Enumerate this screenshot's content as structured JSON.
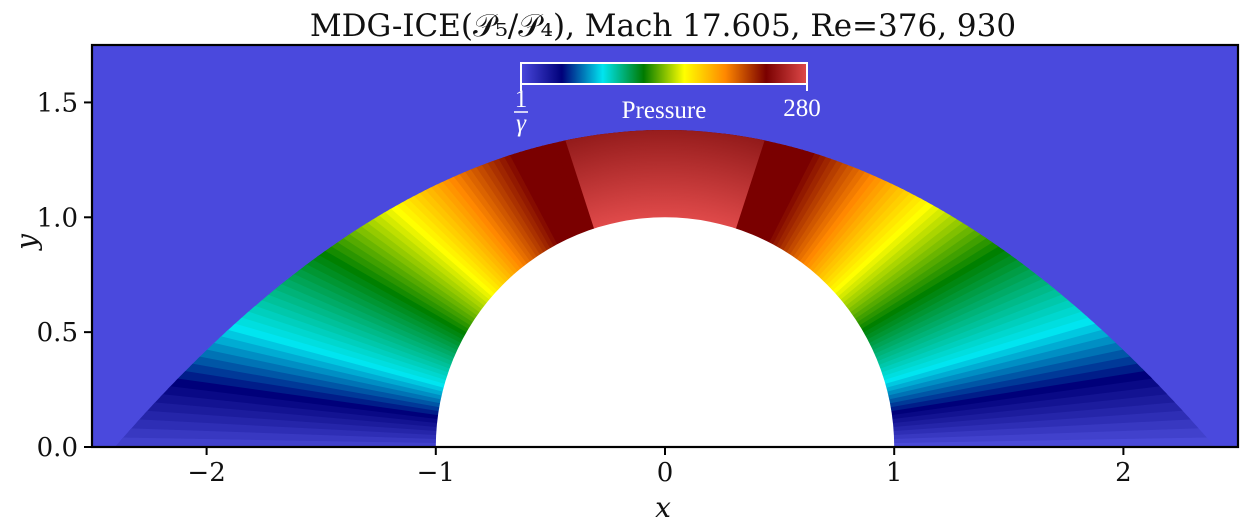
{
  "chart_data": {
    "type": "heatmap",
    "title": "MDG-ICE(𝒫₅/𝒫₄), Mach 17.605, Re=376, 930",
    "xlabel": "x",
    "ylabel": "y",
    "xlim": [
      -2.5,
      2.5
    ],
    "ylim": [
      0.0,
      1.75
    ],
    "x_ticks": [
      -2,
      -1,
      0,
      1,
      2
    ],
    "x_tick_labels": [
      "−2",
      "−1",
      "0",
      "1",
      "2"
    ],
    "y_ticks": [
      0.0,
      0.5,
      1.0,
      1.5
    ],
    "y_tick_labels": [
      "0.0",
      "0.5",
      "1.0",
      "1.5"
    ],
    "grid": false,
    "field": "Pressure",
    "body": {
      "shape": "half-cylinder",
      "center": [
        0,
        0
      ],
      "radius": 1.0
    },
    "shock": {
      "apex_y": 1.38,
      "foot_x": 2.4,
      "profile": "parabolic"
    },
    "freestream_value_label": "1/γ",
    "colorbar": {
      "label": "Pressure",
      "min_label": {
        "numerator": "1",
        "denominator": "γ"
      },
      "max_label": "280",
      "placement": "top-center-inset",
      "colors": [
        "#4a49dd",
        "#00007a",
        "#00e5f0",
        "#007a00",
        "#ffff00",
        "#ff8800",
        "#7a0000",
        "#e04a4a"
      ]
    }
  }
}
